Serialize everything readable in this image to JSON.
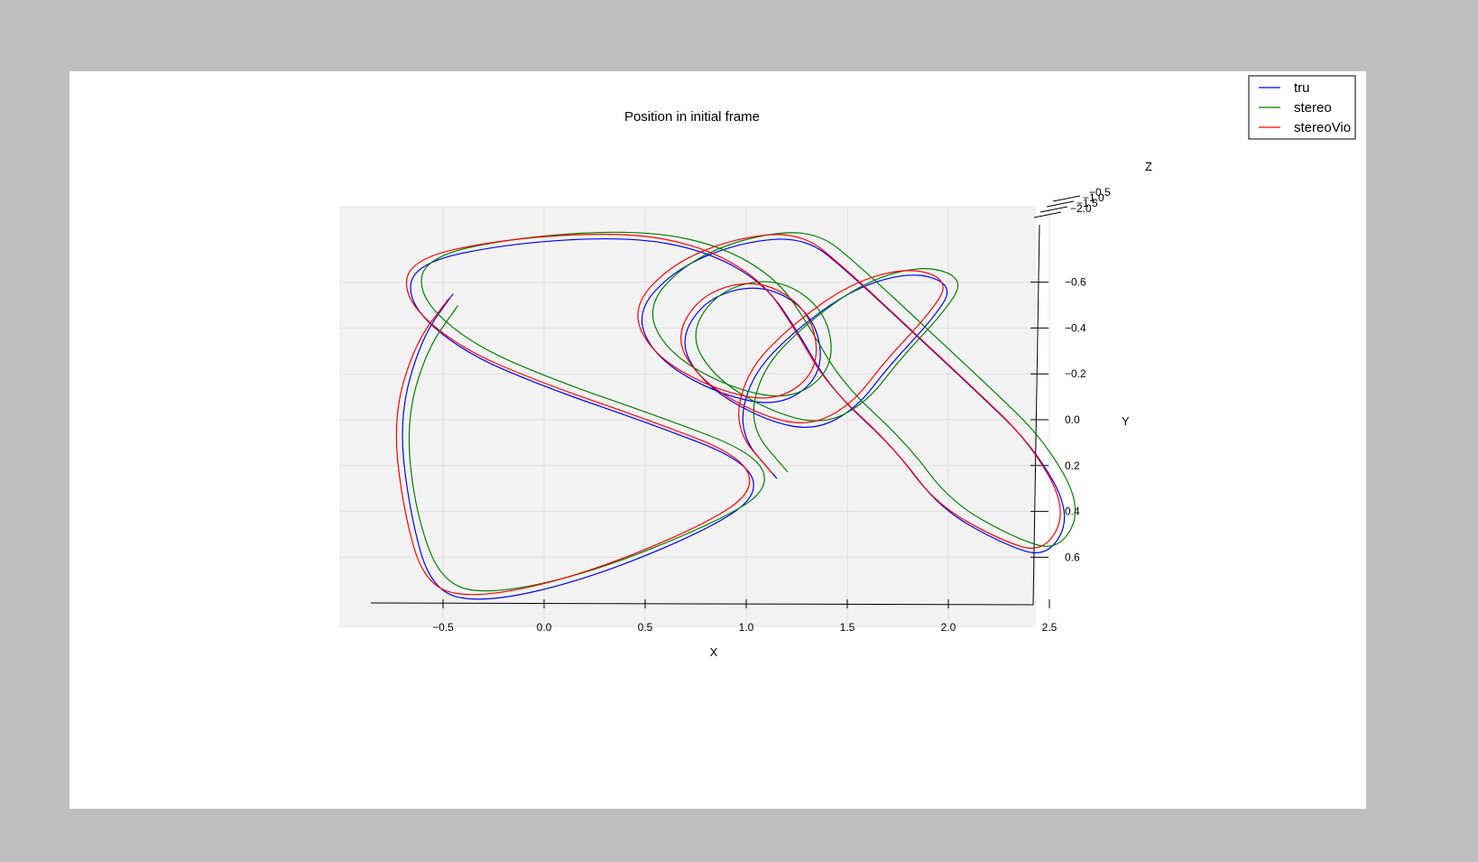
{
  "chart_data": {
    "type": "line",
    "projection": "3d",
    "title": "Position in initial frame",
    "xlabel": "X",
    "ylabel": "Y",
    "zlabel": "Z",
    "xlim": [
      -0.6,
      2.6
    ],
    "ylim": [
      -0.8,
      0.8
    ],
    "zlim": [
      -2.0,
      -0.4
    ],
    "xticks": [
      "−0.5",
      "0.0",
      "0.5",
      "1.0",
      "1.5",
      "2.0",
      "2.5"
    ],
    "yticks": [
      "−0.6",
      "−0.4",
      "−0.2",
      "0.0",
      "0.2",
      "0.4",
      "0.6"
    ],
    "zticks": [
      "−2.0",
      "−1.5",
      "−1.0",
      "−0.5"
    ],
    "grid": true,
    "legend_position": "top-right",
    "series": [
      {
        "name": "tru",
        "color": "#0000ff",
        "points": [
          [
            -0.45,
            -0.55,
            -0.5
          ],
          [
            -0.6,
            -0.35,
            -0.55
          ],
          [
            -0.7,
            0.0,
            -0.6
          ],
          [
            -0.65,
            0.4,
            -0.6
          ],
          [
            -0.55,
            0.75,
            -0.55
          ],
          [
            -0.3,
            0.8,
            -0.5
          ],
          [
            0.2,
            0.7,
            -0.5
          ],
          [
            0.8,
            0.5,
            -0.6
          ],
          [
            1.1,
            0.35,
            -0.7
          ],
          [
            1.05,
            0.2,
            -0.8
          ],
          [
            0.6,
            0.05,
            -0.9
          ],
          [
            0.1,
            -0.1,
            -1.0
          ],
          [
            -0.3,
            -0.25,
            -1.1
          ],
          [
            -0.55,
            -0.45,
            -1.2
          ],
          [
            -0.5,
            -0.62,
            -1.3
          ],
          [
            0.0,
            -0.7,
            -1.4
          ],
          [
            0.6,
            -0.72,
            -1.5
          ],
          [
            1.0,
            -0.65,
            -1.6
          ],
          [
            1.3,
            -0.5,
            -1.65
          ],
          [
            1.45,
            -0.3,
            -1.6
          ],
          [
            1.6,
            -0.05,
            -1.5
          ],
          [
            1.9,
            0.2,
            -1.4
          ],
          [
            2.1,
            0.45,
            -1.3
          ],
          [
            2.4,
            0.6,
            -1.2
          ],
          [
            2.6,
            0.65,
            -1.1
          ],
          [
            2.7,
            0.45,
            -1.0
          ],
          [
            2.5,
            0.15,
            -0.95
          ],
          [
            2.2,
            -0.1,
            -0.9
          ],
          [
            1.9,
            -0.35,
            -0.95
          ],
          [
            1.6,
            -0.6,
            -1.0
          ],
          [
            1.4,
            -0.75,
            -1.1
          ],
          [
            1.1,
            -0.72,
            -1.2
          ],
          [
            0.8,
            -0.6,
            -1.3
          ],
          [
            0.6,
            -0.4,
            -1.35
          ],
          [
            0.7,
            -0.2,
            -1.3
          ],
          [
            1.0,
            -0.05,
            -1.25
          ],
          [
            1.3,
            0.0,
            -1.2
          ],
          [
            1.5,
            -0.15,
            -1.15
          ],
          [
            1.45,
            -0.4,
            -1.1
          ],
          [
            1.2,
            -0.55,
            -1.05
          ],
          [
            0.9,
            -0.5,
            -1.0
          ],
          [
            0.75,
            -0.3,
            -1.0
          ],
          [
            0.9,
            -0.1,
            -1.05
          ],
          [
            1.2,
            0.05,
            -1.1
          ],
          [
            1.45,
            0.1,
            -1.15
          ],
          [
            1.65,
            0.0,
            -1.1
          ],
          [
            1.8,
            -0.2,
            -1.0
          ],
          [
            2.0,
            -0.4,
            -0.95
          ],
          [
            2.1,
            -0.55,
            -0.9
          ],
          [
            1.9,
            -0.62,
            -0.85
          ],
          [
            1.6,
            -0.55,
            -0.85
          ],
          [
            1.3,
            -0.35,
            -0.9
          ],
          [
            1.1,
            -0.15,
            -0.95
          ],
          [
            1.05,
            0.1,
            -1.0
          ],
          [
            1.25,
            0.3,
            -1.05
          ]
        ]
      },
      {
        "name": "stereo",
        "color": "#008000",
        "points": [
          [
            -0.43,
            -0.5,
            -0.48
          ],
          [
            -0.58,
            -0.3,
            -0.52
          ],
          [
            -0.67,
            0.02,
            -0.58
          ],
          [
            -0.62,
            0.42,
            -0.58
          ],
          [
            -0.5,
            0.72,
            -0.52
          ],
          [
            -0.25,
            0.76,
            -0.48
          ],
          [
            0.25,
            0.66,
            -0.48
          ],
          [
            0.85,
            0.46,
            -0.58
          ],
          [
            1.15,
            0.32,
            -0.68
          ],
          [
            1.1,
            0.17,
            -0.78
          ],
          [
            0.65,
            0.02,
            -0.88
          ],
          [
            0.15,
            -0.13,
            -0.98
          ],
          [
            -0.25,
            -0.28,
            -1.08
          ],
          [
            -0.5,
            -0.48,
            -1.18
          ],
          [
            -0.45,
            -0.65,
            -1.28
          ],
          [
            0.05,
            -0.73,
            -1.38
          ],
          [
            0.65,
            -0.75,
            -1.48
          ],
          [
            1.05,
            -0.68,
            -1.58
          ],
          [
            1.35,
            -0.53,
            -1.63
          ],
          [
            1.5,
            -0.33,
            -1.58
          ],
          [
            1.65,
            -0.08,
            -1.48
          ],
          [
            1.95,
            0.17,
            -1.38
          ],
          [
            2.15,
            0.42,
            -1.28
          ],
          [
            2.45,
            0.57,
            -1.18
          ],
          [
            2.65,
            0.62,
            -1.08
          ],
          [
            2.75,
            0.42,
            -0.98
          ],
          [
            2.55,
            0.12,
            -0.93
          ],
          [
            2.25,
            -0.13,
            -0.88
          ],
          [
            1.95,
            -0.38,
            -0.93
          ],
          [
            1.65,
            -0.63,
            -0.98
          ],
          [
            1.45,
            -0.78,
            -1.08
          ],
          [
            1.15,
            -0.75,
            -1.18
          ],
          [
            0.85,
            -0.63,
            -1.28
          ],
          [
            0.65,
            -0.43,
            -1.33
          ],
          [
            0.75,
            -0.23,
            -1.28
          ],
          [
            1.05,
            -0.08,
            -1.23
          ],
          [
            1.35,
            -0.03,
            -1.18
          ],
          [
            1.55,
            -0.18,
            -1.13
          ],
          [
            1.5,
            -0.43,
            -1.08
          ],
          [
            1.25,
            -0.58,
            -1.03
          ],
          [
            0.95,
            -0.53,
            -0.98
          ],
          [
            0.8,
            -0.33,
            -0.98
          ],
          [
            0.95,
            -0.13,
            -1.03
          ],
          [
            1.25,
            0.02,
            -1.08
          ],
          [
            1.5,
            0.07,
            -1.13
          ],
          [
            1.7,
            -0.03,
            -1.08
          ],
          [
            1.85,
            -0.23,
            -0.98
          ],
          [
            2.05,
            -0.43,
            -0.93
          ],
          [
            2.15,
            -0.58,
            -0.88
          ],
          [
            1.95,
            -0.65,
            -0.83
          ],
          [
            1.65,
            -0.58,
            -0.83
          ],
          [
            1.35,
            -0.38,
            -0.88
          ],
          [
            1.15,
            -0.18,
            -0.93
          ],
          [
            1.1,
            0.07,
            -0.98
          ],
          [
            1.3,
            0.27,
            -1.03
          ]
        ]
      },
      {
        "name": "stereoVio",
        "color": "#ff0000",
        "points": [
          [
            -0.47,
            -0.53,
            -0.5
          ],
          [
            -0.63,
            -0.33,
            -0.55
          ],
          [
            -0.73,
            0.0,
            -0.6
          ],
          [
            -0.68,
            0.4,
            -0.6
          ],
          [
            -0.58,
            0.73,
            -0.55
          ],
          [
            -0.33,
            0.78,
            -0.5
          ],
          [
            0.18,
            0.68,
            -0.5
          ],
          [
            0.78,
            0.48,
            -0.6
          ],
          [
            1.08,
            0.33,
            -0.7
          ],
          [
            1.03,
            0.18,
            -0.8
          ],
          [
            0.58,
            0.03,
            -0.9
          ],
          [
            0.08,
            -0.12,
            -1.0
          ],
          [
            -0.32,
            -0.27,
            -1.1
          ],
          [
            -0.57,
            -0.47,
            -1.2
          ],
          [
            -0.52,
            -0.64,
            -1.3
          ],
          [
            -0.02,
            -0.72,
            -1.4
          ],
          [
            0.58,
            -0.74,
            -1.5
          ],
          [
            0.98,
            -0.67,
            -1.6
          ],
          [
            1.28,
            -0.52,
            -1.65
          ],
          [
            1.43,
            -0.32,
            -1.6
          ],
          [
            1.58,
            -0.07,
            -1.5
          ],
          [
            1.88,
            0.18,
            -1.4
          ],
          [
            2.08,
            0.43,
            -1.3
          ],
          [
            2.38,
            0.58,
            -1.2
          ],
          [
            2.58,
            0.63,
            -1.1
          ],
          [
            2.68,
            0.43,
            -1.0
          ],
          [
            2.48,
            0.13,
            -0.95
          ],
          [
            2.18,
            -0.12,
            -0.9
          ],
          [
            1.88,
            -0.37,
            -0.95
          ],
          [
            1.58,
            -0.62,
            -1.0
          ],
          [
            1.38,
            -0.77,
            -1.1
          ],
          [
            1.08,
            -0.74,
            -1.2
          ],
          [
            0.78,
            -0.62,
            -1.3
          ],
          [
            0.58,
            -0.42,
            -1.35
          ],
          [
            0.68,
            -0.22,
            -1.3
          ],
          [
            0.98,
            -0.07,
            -1.25
          ],
          [
            1.28,
            -0.02,
            -1.2
          ],
          [
            1.48,
            -0.17,
            -1.15
          ],
          [
            1.43,
            -0.42,
            -1.1
          ],
          [
            1.18,
            -0.57,
            -1.05
          ],
          [
            0.88,
            -0.52,
            -1.0
          ],
          [
            0.73,
            -0.32,
            -1.0
          ],
          [
            0.88,
            -0.12,
            -1.05
          ],
          [
            1.18,
            0.03,
            -1.1
          ],
          [
            1.43,
            0.08,
            -1.15
          ],
          [
            1.63,
            -0.02,
            -1.1
          ],
          [
            1.78,
            -0.22,
            -1.0
          ],
          [
            1.98,
            -0.42,
            -0.95
          ],
          [
            2.08,
            -0.57,
            -0.9
          ],
          [
            1.88,
            -0.64,
            -0.85
          ],
          [
            1.58,
            -0.57,
            -0.85
          ],
          [
            1.28,
            -0.37,
            -0.9
          ],
          [
            1.08,
            -0.17,
            -0.95
          ],
          [
            1.03,
            0.08,
            -1.0
          ],
          [
            1.23,
            0.28,
            -1.05
          ]
        ]
      }
    ]
  }
}
